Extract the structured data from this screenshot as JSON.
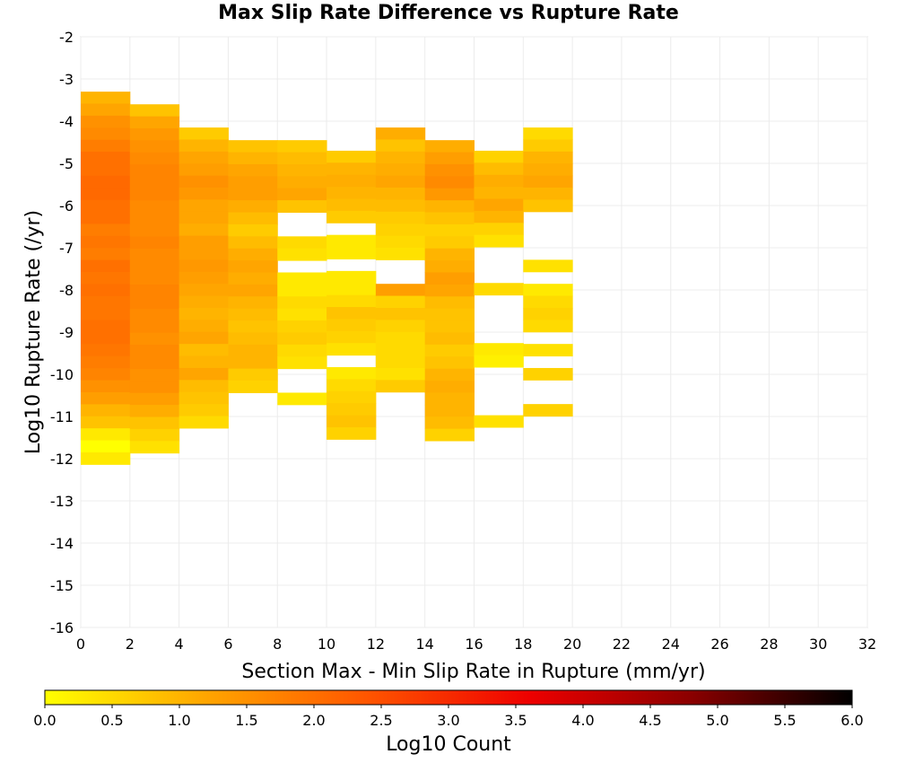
{
  "chart_data": {
    "type": "heatmap",
    "title": "Max Slip Rate Difference vs Rupture Rate",
    "xlabel": "Section Max - Min Slip Rate in Rupture (mm/yr)",
    "ylabel": "Log10 Rupture Rate (/yr)",
    "xlim": [
      0,
      32
    ],
    "ylim": [
      -16,
      -2
    ],
    "x_ticks": [
      "0",
      "2",
      "4",
      "6",
      "8",
      "10",
      "12",
      "14",
      "16",
      "18",
      "20",
      "22",
      "24",
      "26",
      "28",
      "30",
      "32"
    ],
    "y_ticks": [
      "-2",
      "-3",
      "-4",
      "-5",
      "-6",
      "-7",
      "-8",
      "-9",
      "-10",
      "-11",
      "-12",
      "-13",
      "-14",
      "-15",
      "-16"
    ],
    "x_bin_width": 2,
    "y_bin_height": 0.285,
    "grid": true,
    "colorbar": {
      "label": "Log10 Count",
      "range": [
        0,
        6
      ],
      "ticks": [
        "0.0",
        "0.5",
        "1.0",
        "1.5",
        "2.0",
        "2.5",
        "3.0",
        "3.5",
        "4.0",
        "4.5",
        "5.0",
        "5.5",
        "6.0"
      ],
      "colors": [
        "#ffff00",
        "#ffa500",
        "#ff5500",
        "#ee0000",
        "#8b0000",
        "#000000"
      ]
    },
    "columns": [
      {
        "x_start": 0,
        "y_top": -3.3,
        "values": [
          1.0,
          1.2,
          1.5,
          1.6,
          1.8,
          2.0,
          2.0,
          2.1,
          2.1,
          2.0,
          2.0,
          1.8,
          1.9,
          1.8,
          2.0,
          1.9,
          2.0,
          1.9,
          1.9,
          2.0,
          2.0,
          1.9,
          1.8,
          1.7,
          1.5,
          1.3,
          1.0,
          0.8,
          0.3,
          0.0,
          0.3
        ]
      },
      {
        "x_start": 2,
        "y_top": -3.6,
        "values": [
          0.8,
          1.2,
          1.4,
          1.5,
          1.6,
          1.7,
          1.7,
          1.7,
          1.6,
          1.6,
          1.6,
          1.7,
          1.6,
          1.6,
          1.6,
          1.7,
          1.7,
          1.6,
          1.6,
          1.5,
          1.6,
          1.6,
          1.5,
          1.5,
          1.3,
          1.1,
          0.8,
          0.6,
          0.4
        ]
      },
      {
        "x_start": 4,
        "y_top": -4.15,
        "values": [
          0.7,
          1.0,
          1.2,
          1.3,
          1.5,
          1.4,
          1.2,
          1.2,
          1.1,
          1.3,
          1.3,
          1.4,
          1.3,
          1.2,
          1.1,
          1.0,
          1.1,
          1.2,
          0.9,
          1.0,
          1.2,
          0.9,
          0.8,
          0.7,
          0.5
        ]
      },
      {
        "x_start": 6,
        "y_top": -4.45,
        "values": [
          0.8,
          1.0,
          1.2,
          1.3,
          1.3,
          1.1,
          0.9,
          0.7,
          0.9,
          1.1,
          1.2,
          1.1,
          1.2,
          1.0,
          0.9,
          0.8,
          0.9,
          1.0,
          1.0,
          0.7,
          0.6
        ]
      },
      {
        "x_start": 8,
        "y_top": -4.45,
        "values": [
          0.7,
          0.9,
          1.0,
          1.1,
          1.2,
          0.8,
          null,
          null,
          0.5,
          0.4,
          null,
          0.3,
          0.3,
          0.5,
          0.4,
          0.6,
          0.7,
          0.5,
          0.4,
          null,
          null,
          0.3
        ]
      },
      {
        "x_start": 10,
        "y_top": -4.7,
        "values": [
          0.7,
          1.0,
          1.1,
          1.0,
          0.9,
          0.7,
          null,
          0.3,
          0.3,
          null,
          0.3,
          0.3,
          0.5,
          0.8,
          0.7,
          0.6,
          0.4,
          null,
          0.3,
          0.5,
          0.6,
          0.7,
          0.8,
          0.6
        ]
      },
      {
        "x_start": 12,
        "y_top": -4.15,
        "values": [
          1.1,
          0.8,
          1.0,
          1.1,
          1.2,
          1.0,
          0.9,
          0.7,
          0.6,
          0.5,
          0.4,
          null,
          null,
          1.3,
          0.6,
          0.8,
          0.6,
          0.5,
          0.5,
          0.5,
          0.4,
          0.7
        ]
      },
      {
        "x_start": 14,
        "y_top": -4.45,
        "values": [
          1.1,
          1.3,
          1.5,
          1.6,
          1.4,
          1.0,
          0.8,
          0.6,
          0.7,
          1.0,
          1.1,
          1.3,
          1.2,
          0.9,
          0.8,
          0.8,
          0.9,
          0.7,
          0.8,
          1.0,
          1.1,
          1.0,
          1.0,
          0.9,
          0.6
        ]
      },
      {
        "x_start": 16,
        "y_top": -4.7,
        "values": [
          0.6,
          0.9,
          1.1,
          1.0,
          1.2,
          1.0,
          0.6,
          0.4,
          null,
          null,
          null,
          0.5,
          null,
          null,
          null,
          null,
          0.3,
          0.2,
          null,
          null,
          null,
          null,
          0.4
        ]
      },
      {
        "x_start": 18,
        "y_top": -4.15,
        "values": [
          0.5,
          0.7,
          1.0,
          1.1,
          1.2,
          1.0,
          0.8,
          null,
          null,
          null,
          null,
          0.4,
          null,
          0.3,
          0.5,
          0.6,
          0.5,
          null,
          0.4,
          null,
          0.6,
          null,
          null,
          0.6
        ]
      }
    ]
  }
}
